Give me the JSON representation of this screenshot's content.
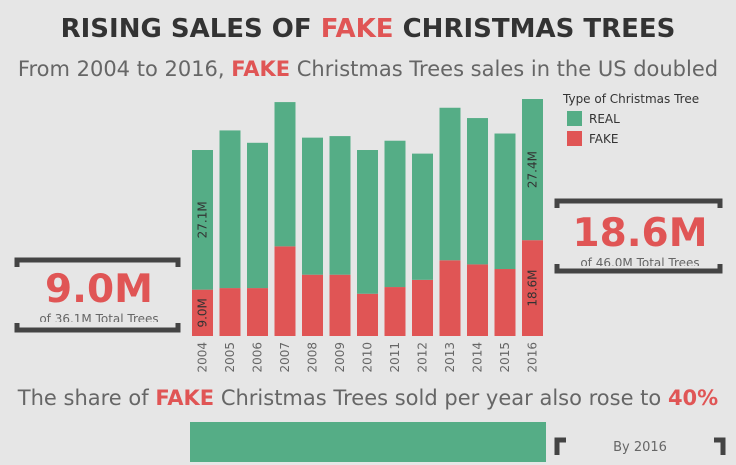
{
  "header": {
    "title_pre": "RISING SALES OF ",
    "title_hl": "FAKE",
    "title_post": " CHRISTMAS TREES",
    "subtitle_pre": "From 2004 to 2016, ",
    "subtitle_hl": "FAKE",
    "subtitle_post": " Christmas Trees sales in the US doubled"
  },
  "legend": {
    "title": "Type of Christmas Tree",
    "items": [
      {
        "label": "REAL",
        "color": "#55ad86"
      },
      {
        "label": "FAKE",
        "color": "#e05555"
      }
    ]
  },
  "callout_left": {
    "value": "9.0M",
    "caption": "of 36.1M Total Trees"
  },
  "callout_right": {
    "value": "18.6M",
    "caption": "of 46.0M Total Trees"
  },
  "share": {
    "pre": "The share of ",
    "hl": "FAKE",
    "mid": " Christmas Trees sold per year also rose to ",
    "pct": "40%"
  },
  "by_label": "By 2016",
  "chart_data": {
    "type": "bar",
    "stacked": true,
    "categories": [
      "2004",
      "2005",
      "2006",
      "2007",
      "2008",
      "2009",
      "2010",
      "2011",
      "2012",
      "2013",
      "2014",
      "2015",
      "2016"
    ],
    "series": [
      {
        "name": "FAKE",
        "color": "#e05555",
        "values": [
          9.0,
          9.3,
          9.3,
          17.4,
          11.9,
          11.9,
          8.2,
          9.5,
          10.9,
          14.7,
          13.9,
          13.0,
          18.6
        ]
      },
      {
        "name": "REAL",
        "color": "#55ad86",
        "values": [
          27.1,
          30.6,
          28.2,
          28.0,
          26.6,
          26.9,
          27.9,
          28.4,
          24.5,
          29.6,
          28.4,
          26.3,
          27.4
        ]
      }
    ],
    "data_labels": [
      {
        "category": "2004",
        "series": "REAL",
        "text": "27.1M"
      },
      {
        "category": "2004",
        "series": "FAKE",
        "text": "9.0M"
      },
      {
        "category": "2016",
        "series": "REAL",
        "text": "27.4M"
      },
      {
        "category": "2016",
        "series": "FAKE",
        "text": "18.6M"
      }
    ],
    "ylim": [
      0,
      46.0
    ],
    "grid": false,
    "legend_position": "top-right",
    "xlabel": "",
    "ylabel": ""
  }
}
